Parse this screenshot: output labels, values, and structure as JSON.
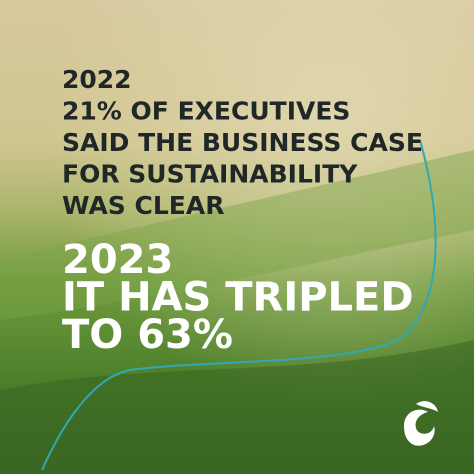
{
  "block_2022": {
    "lines": [
      "2022",
      "21% OF EXECUTIVES",
      "SAID THE BUSINESS CASE",
      "FOR SUSTAINABILITY",
      "WAS CLEAR"
    ]
  },
  "block_2023": {
    "lines": [
      "2023",
      "IT HAS TRIPLED",
      "TO 63%"
    ]
  }
}
